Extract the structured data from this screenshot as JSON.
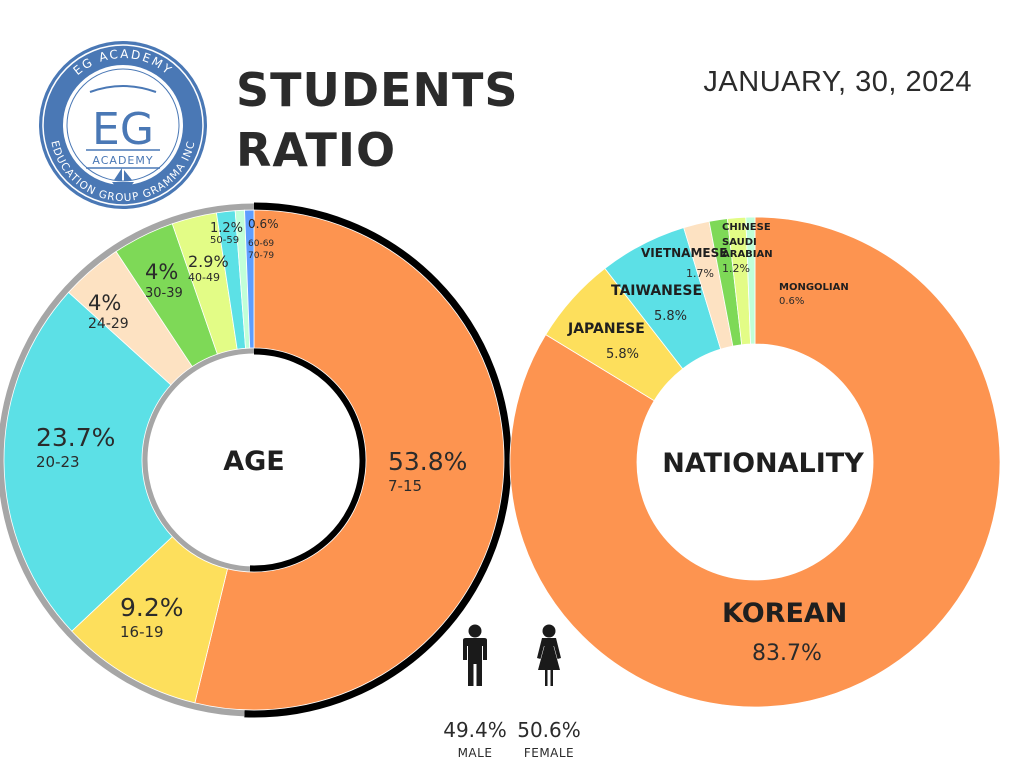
{
  "header": {
    "title_line1": "STUDENTS",
    "title_line2": "RATIO",
    "date": "JANUARY, 30, 2024"
  },
  "logo": {
    "ring_text_top": "EG ACADEMY",
    "ring_text_bottom": "EDUCATION GROUP GRAMMA INC",
    "center_text": "EG",
    "sub_text": "ACADEMY",
    "color": "#4a78b5"
  },
  "chart_data": [
    {
      "type": "pie",
      "variant": "donut",
      "center_label": "AGE",
      "slices": [
        {
          "label": "7-15",
          "value": 53.8,
          "display": "53.8%",
          "color": "#fd9450"
        },
        {
          "label": "16-19",
          "value": 9.2,
          "display": "9.2%",
          "color": "#fddf5c"
        },
        {
          "label": "20-23",
          "value": 23.7,
          "display": "23.7%",
          "color": "#5ce0e6"
        },
        {
          "label": "24-29",
          "value": 4,
          "display": "4%",
          "color": "#fde2c2"
        },
        {
          "label": "30-39",
          "value": 4,
          "display": "4%",
          "color": "#7ed957"
        },
        {
          "label": "40-49",
          "value": 2.9,
          "display": "2.9%",
          "color": "#e3fc86"
        },
        {
          "label": "50-59",
          "value": 1.2,
          "display": "1.2%",
          "color": "#5ce1e6"
        },
        {
          "label": "60-69",
          "value": 0.6,
          "display": "0.6%",
          "color": "#c1ffd8"
        },
        {
          "label": "70-79",
          "value": 0.6,
          "display": "",
          "color": "#5e9eff"
        }
      ],
      "gender": [
        {
          "label": "MALE",
          "value": 49.4,
          "display": "49.4%",
          "ring_color": "#a6a6a6"
        },
        {
          "label": "FEMALE",
          "value": 50.6,
          "display": "50.6%",
          "ring_color": "#000000"
        }
      ]
    },
    {
      "type": "pie",
      "variant": "donut",
      "center_label": "NATIONALITY",
      "slices": [
        {
          "label": "KOREAN",
          "value": 83.7,
          "display": "83.7%",
          "color": "#fd9450"
        },
        {
          "label": "JAPANESE",
          "value": 5.8,
          "display": "5.8%",
          "color": "#fddf5c"
        },
        {
          "label": "TAIWANESE",
          "value": 5.8,
          "display": "5.8%",
          "color": "#5ce0e6"
        },
        {
          "label": "VIETNAMESE",
          "value": 1.7,
          "display": "1.7%",
          "color": "#fde2c2"
        },
        {
          "label": "CHINESE",
          "value": 1.2,
          "display": "",
          "color": "#7ed957"
        },
        {
          "label": "SAUDI ARABIAN",
          "value": 1.2,
          "display": "1.2%",
          "color": "#e3fc86"
        },
        {
          "label": "MONGOLIAN",
          "value": 0.6,
          "display": "0.6%",
          "color": "#c1ffd8"
        }
      ]
    }
  ]
}
